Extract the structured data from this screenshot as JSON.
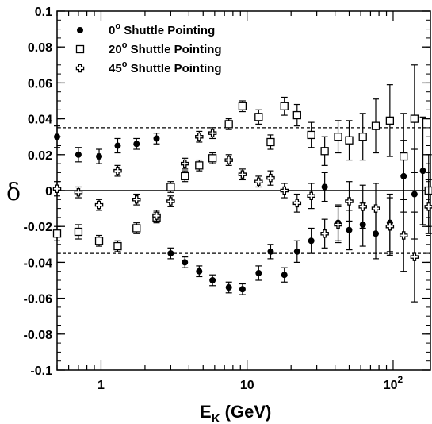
{
  "chart_data": {
    "type": "scatter",
    "title": "",
    "xlabel_main": "E",
    "xlabel_sub": "K",
    "xlabel_unit": " (GeV)",
    "ylabel": "δ",
    "xscale": "log",
    "xlim": [
      0.5,
      180
    ],
    "ylim": [
      -0.1,
      0.1
    ],
    "yticks": [
      {
        "value": 0.1,
        "label": "0.1"
      },
      {
        "value": 0.08,
        "label": "0.08"
      },
      {
        "value": 0.06,
        "label": "0.06"
      },
      {
        "value": 0.04,
        "label": "0.04"
      },
      {
        "value": 0.02,
        "label": "0.02"
      },
      {
        "value": 0,
        "label": "0"
      },
      {
        "value": -0.02,
        "label": "-0.02"
      },
      {
        "value": -0.04,
        "label": "-0.04"
      },
      {
        "value": -0.06,
        "label": "-0.06"
      },
      {
        "value": -0.08,
        "label": "-0.08"
      },
      {
        "value": -0.1,
        "label": "-0.1"
      }
    ],
    "xticks": [
      {
        "value": 1,
        "label": "1"
      },
      {
        "value": 10,
        "label": "10"
      },
      {
        "value": 100,
        "label": "10",
        "exp": "2"
      }
    ],
    "reference_lines": [
      {
        "y": 0.035,
        "style": "dashed"
      },
      {
        "y": 0,
        "style": "solid"
      },
      {
        "y": -0.035,
        "style": "dashed"
      }
    ],
    "legend_position": "top-left",
    "series": [
      {
        "name": "0",
        "name_sup": "o",
        "name_rest": " Shuttle Pointing",
        "marker": "filled-circle",
        "x": [
          0.5,
          0.7,
          0.97,
          1.3,
          1.75,
          2.4,
          3.0,
          3.75,
          4.7,
          5.8,
          7.5,
          9.3,
          12.0,
          14.5,
          18.0,
          22.0,
          27.5,
          34,
          42,
          50,
          62,
          76,
          95,
          118,
          140,
          160
        ],
        "y": [
          0.03,
          0.02,
          0.019,
          0.025,
          0.026,
          0.029,
          -0.035,
          -0.04,
          -0.045,
          -0.05,
          -0.054,
          -0.055,
          -0.046,
          -0.034,
          -0.047,
          -0.034,
          -0.028,
          0.002,
          -0.018,
          -0.022,
          -0.019,
          -0.024,
          -0.018,
          0.008,
          -0.002,
          0.011
        ],
        "err": [
          0.006,
          0.004,
          0.004,
          0.004,
          0.003,
          0.003,
          0.003,
          0.003,
          0.003,
          0.003,
          0.003,
          0.003,
          0.004,
          0.004,
          0.004,
          0.006,
          0.007,
          0.008,
          0.01,
          0.011,
          0.012,
          0.014,
          0.016,
          0.02,
          0.025,
          0.03
        ]
      },
      {
        "name": "20",
        "name_sup": "o",
        "name_rest": " Shuttle Pointing",
        "marker": "open-square",
        "x": [
          0.5,
          0.7,
          0.97,
          1.3,
          1.75,
          2.4,
          3.0,
          3.75,
          4.7,
          5.8,
          7.5,
          9.3,
          12.0,
          14.5,
          18.0,
          22.0,
          27.5,
          34,
          42,
          50,
          62,
          76,
          95,
          118,
          140,
          175
        ],
        "y": [
          -0.024,
          -0.023,
          -0.028,
          -0.031,
          -0.021,
          -0.015,
          0.002,
          0.008,
          0.014,
          0.018,
          0.037,
          0.047,
          0.041,
          0.027,
          0.047,
          0.042,
          0.031,
          0.022,
          0.03,
          0.028,
          0.03,
          0.036,
          0.039,
          0.019,
          0.04,
          0.0
        ],
        "err": [
          0.004,
          0.004,
          0.003,
          0.003,
          0.003,
          0.003,
          0.003,
          0.003,
          0.003,
          0.003,
          0.003,
          0.003,
          0.004,
          0.004,
          0.005,
          0.006,
          0.007,
          0.008,
          0.009,
          0.011,
          0.013,
          0.015,
          0.02,
          0.024,
          0.03,
          0.02
        ]
      },
      {
        "name": "45",
        "name_sup": "o",
        "name_rest": " Shuttle Pointing",
        "marker": "open-cross",
        "x": [
          0.5,
          0.7,
          0.97,
          1.3,
          1.75,
          2.4,
          3.0,
          3.75,
          4.7,
          5.8,
          7.5,
          9.3,
          12.0,
          14.5,
          18.0,
          22.0,
          27.5,
          34,
          42,
          50,
          62,
          76,
          95,
          118,
          140,
          175
        ],
        "y": [
          0.001,
          -0.001,
          -0.008,
          0.011,
          -0.005,
          -0.014,
          -0.006,
          0.015,
          0.03,
          0.032,
          0.017,
          0.009,
          0.005,
          0.007,
          0.0,
          -0.007,
          -0.003,
          -0.024,
          -0.019,
          -0.006,
          -0.009,
          -0.01,
          -0.02,
          -0.025,
          -0.037,
          -0.009
        ],
        "err": [
          0.004,
          0.003,
          0.003,
          0.003,
          0.003,
          0.003,
          0.003,
          0.003,
          0.003,
          0.003,
          0.003,
          0.003,
          0.003,
          0.004,
          0.004,
          0.005,
          0.007,
          0.008,
          0.01,
          0.011,
          0.012,
          0.014,
          0.016,
          0.02,
          0.025,
          0.015
        ]
      }
    ]
  }
}
